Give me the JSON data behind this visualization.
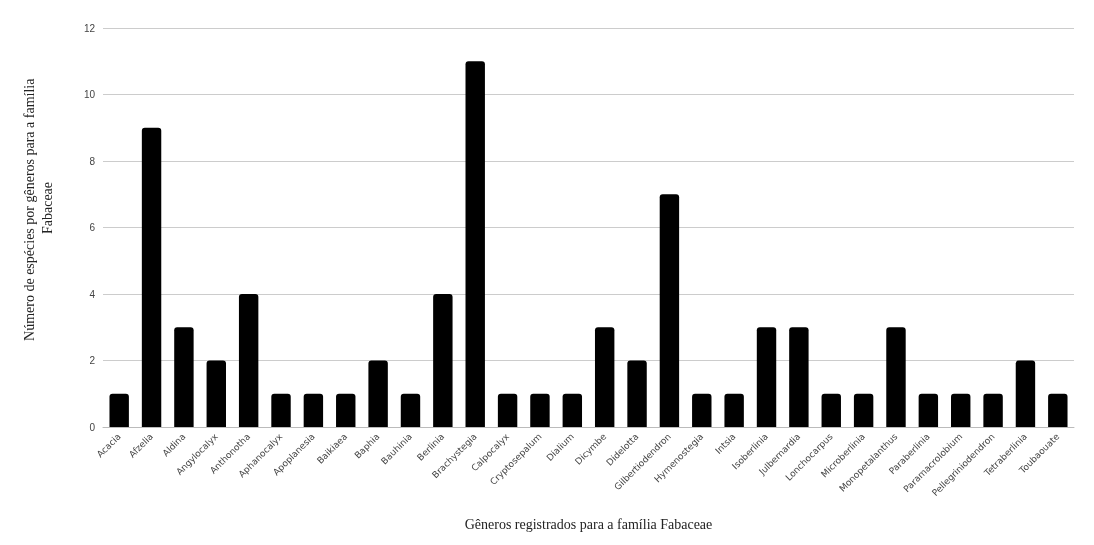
{
  "chart_data": {
    "type": "bar",
    "xlabel": "Gêneros registrados para a família Fabaceae",
    "ylabel": "Número de espécies por gêneros para a família Fabaceae",
    "categories": [
      "Acacia",
      "Afzelia",
      "Aldina",
      "Angylocalyx",
      "Anthonotha",
      "Aphanocalyx",
      "Apoplanesia",
      "Baikiaea",
      "Baphia",
      "Bauhinia",
      "Berlinia",
      "Brachystegia",
      "Calpocalyx",
      "Cryptosepalum",
      "Dialium",
      "Dicymbe",
      "Didelotta",
      "Gilbertiodendron",
      "Hymenostegia",
      "Intsia",
      "Isoberlinia",
      "Julbernardia",
      "Lonchocarpus",
      "Microberlinia",
      "Monopetalanthus",
      "Paraberlinia",
      "Paramacrolobium",
      "Pellegriniodendron",
      "Tetraberlinia",
      "Toubaouate"
    ],
    "values": [
      1,
      9,
      3,
      2,
      4,
      1,
      1,
      1,
      2,
      1,
      4,
      11,
      1,
      1,
      1,
      3,
      2,
      7,
      1,
      1,
      3,
      3,
      1,
      1,
      3,
      1,
      1,
      1,
      2,
      1
    ],
    "color": "#000000",
    "ylim": [
      0,
      12
    ],
    "yticks": [
      0,
      2,
      4,
      6,
      8,
      10,
      12
    ],
    "grid": "y"
  }
}
